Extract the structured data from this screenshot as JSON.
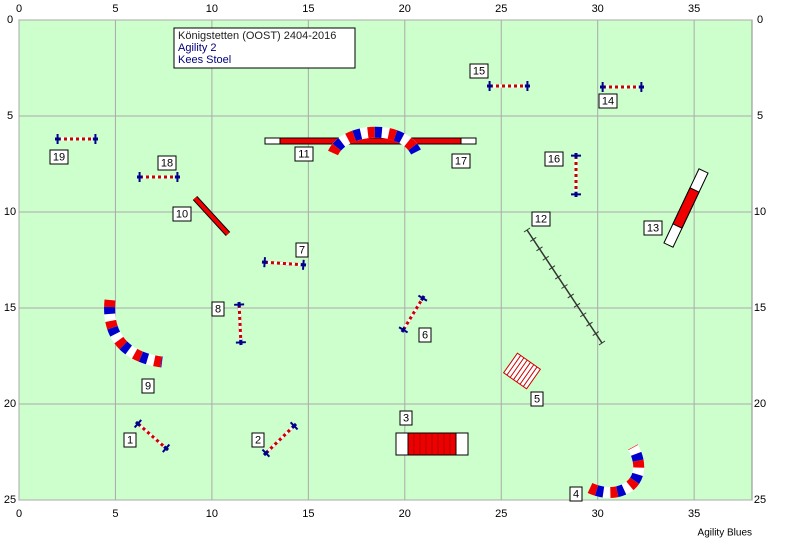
{
  "info": {
    "lines": [
      "Königstetten (OOST) 2404-2016",
      "Agility 2",
      "Kees Stoel"
    ]
  },
  "axes": {
    "xticks": [
      0,
      5,
      10,
      15,
      20,
      25,
      30,
      35
    ],
    "yticks": [
      0,
      5,
      10,
      15,
      20,
      25
    ]
  },
  "obstacles": [
    "1",
    "2",
    "3",
    "4",
    "5",
    "6",
    "7",
    "8",
    "9",
    "10",
    "11",
    "12",
    "13",
    "14",
    "15",
    "16",
    "17",
    "18",
    "19"
  ],
  "footer": "Agility Blues"
}
